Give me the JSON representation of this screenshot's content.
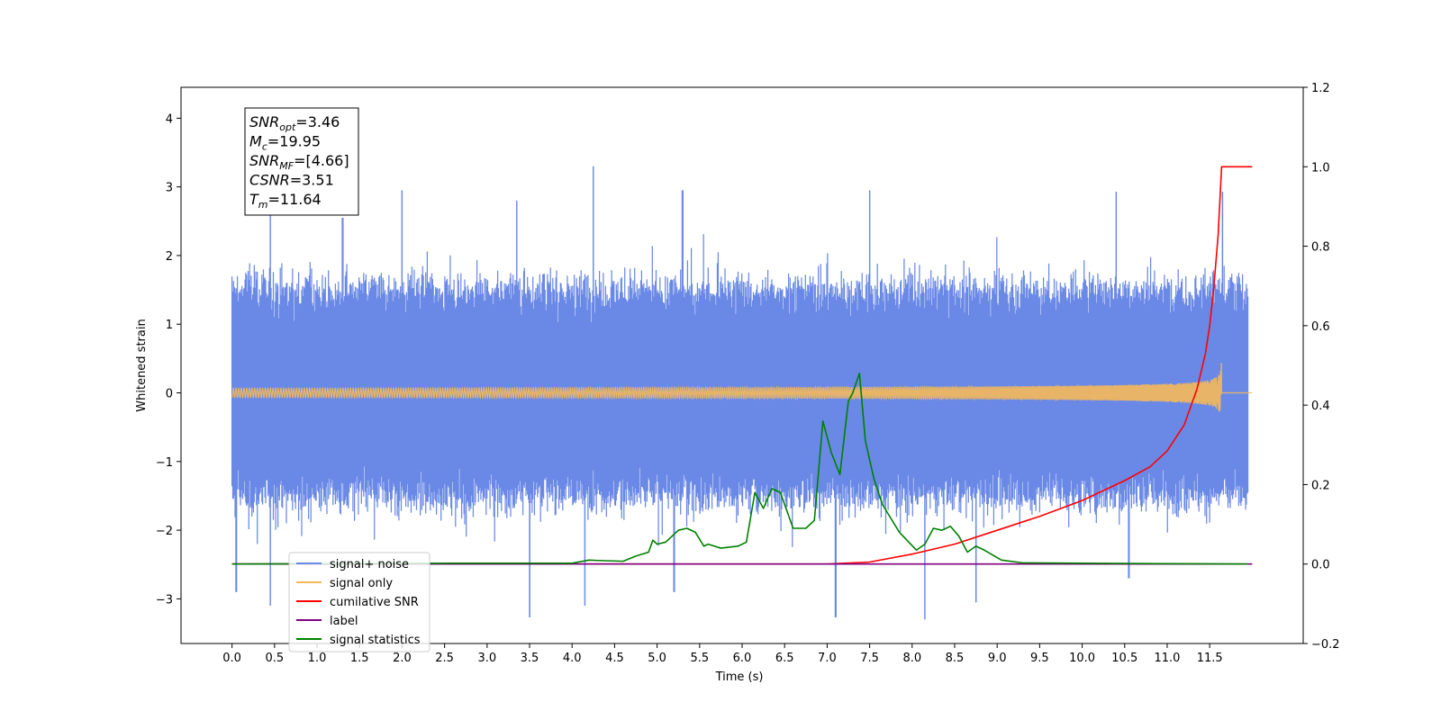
{
  "chart_data": {
    "type": "line",
    "xlabel": "Time (s)",
    "ylabel": "Whitened strain",
    "xlim": [
      -0.6,
      12.6
    ],
    "ylim": [
      -3.65,
      4.45
    ],
    "y2lim": [
      -0.2,
      1.2
    ],
    "x_ticks": [
      0.0,
      0.5,
      1.0,
      1.5,
      2.0,
      2.5,
      3.0,
      3.5,
      4.0,
      4.5,
      5.0,
      5.5,
      6.0,
      6.5,
      7.0,
      7.5,
      8.0,
      8.5,
      9.0,
      9.5,
      10.0,
      10.5,
      11.0,
      11.5
    ],
    "x_tick_labels": [
      "0.0",
      "0.5",
      "1.0",
      "1.5",
      "2.0",
      "2.5",
      "3.0",
      "3.5",
      "4.0",
      "4.5",
      "5.0",
      "5.5",
      "6.0",
      "6.5",
      "7.0",
      "7.5",
      "8.0",
      "8.5",
      "9.0",
      "9.5",
      "10.0",
      "10.5",
      "11.0",
      "11.5"
    ],
    "y_ticks": [
      4,
      3,
      2,
      1,
      0,
      -1,
      -2,
      -3
    ],
    "y_tick_labels": [
      "4",
      "3",
      "2",
      "1",
      "0",
      "−1",
      "−2",
      "−3"
    ],
    "y2_ticks": [
      1.2,
      1.0,
      0.8,
      0.6,
      0.4,
      0.2,
      0.0,
      -0.2
    ],
    "y2_tick_labels": [
      "1.2",
      "1.0",
      "0.8",
      "0.6",
      "0.4",
      "0.2",
      "0.0",
      "−0.2"
    ],
    "grid": false,
    "legend_position": "lower-left",
    "annotation": {
      "lines": [
        {
          "var": "SNR",
          "sub": "opt",
          "value": "=3.46"
        },
        {
          "var": "M",
          "sub": "c",
          "value": "=19.95"
        },
        {
          "var": "SNR",
          "sub": "MF",
          "value": "=[4.66]"
        },
        {
          "var": "CSNR",
          "sub": "",
          "value": "=3.51"
        },
        {
          "var": "T",
          "sub": "m",
          "value": "=11.64"
        }
      ]
    },
    "noise_envelope": {
      "x": [
        0.0,
        11.95
      ],
      "typical_max": 1.5,
      "typical_min": -1.5,
      "peaks": [
        [
          0.45,
          2.6
        ],
        [
          1.3,
          2.55
        ],
        [
          2.0,
          2.95
        ],
        [
          3.35,
          2.8
        ],
        [
          4.25,
          3.3
        ],
        [
          5.3,
          2.95
        ],
        [
          7.5,
          2.95
        ],
        [
          10.4,
          2.93
        ],
        [
          11.65,
          2.93
        ]
      ],
      "troughs": [
        [
          0.05,
          -2.9
        ],
        [
          0.45,
          -3.1
        ],
        [
          3.5,
          -3.27
        ],
        [
          4.15,
          -3.1
        ],
        [
          5.2,
          -2.9
        ],
        [
          7.1,
          -3.27
        ],
        [
          8.15,
          -3.3
        ],
        [
          8.75,
          -3.05
        ],
        [
          10.55,
          -2.7
        ]
      ]
    },
    "series": [
      {
        "name": "signal+ noise",
        "color": "#6a89e6",
        "axis": "left",
        "kind": "noise"
      },
      {
        "name": "signal only",
        "color": "#f5b95a",
        "axis": "left",
        "kind": "chirp",
        "t_merge": 11.64,
        "peak_amplitude": 0.5
      },
      {
        "name": "cumilative SNR",
        "color": "#ff0000",
        "axis": "right",
        "x": [
          0.0,
          7.0,
          7.5,
          8.0,
          8.5,
          9.0,
          9.5,
          10.0,
          10.5,
          10.8,
          11.0,
          11.2,
          11.35,
          11.45,
          11.5,
          11.55,
          11.6,
          11.64,
          12.0
        ],
        "y": [
          0.0,
          0.0,
          0.005,
          0.025,
          0.05,
          0.085,
          0.12,
          0.16,
          0.21,
          0.245,
          0.285,
          0.35,
          0.44,
          0.53,
          0.6,
          0.7,
          0.83,
          1.0,
          1.0
        ]
      },
      {
        "name": "label",
        "color": "#800080",
        "axis": "right",
        "x": [
          0.0,
          12.0
        ],
        "y": [
          0.0,
          0.0
        ]
      },
      {
        "name": "signal statistics",
        "color": "#008000",
        "axis": "right",
        "x": [
          0.0,
          2.6,
          3.0,
          4.0,
          4.2,
          4.3,
          4.6,
          4.75,
          4.9,
          4.95,
          5.0,
          5.1,
          5.25,
          5.35,
          5.45,
          5.55,
          5.6,
          5.75,
          5.95,
          6.05,
          6.15,
          6.25,
          6.35,
          6.45,
          6.6,
          6.75,
          6.85,
          6.95,
          7.05,
          7.15,
          7.25,
          7.3,
          7.38,
          7.45,
          7.55,
          7.65,
          7.85,
          8.05,
          8.15,
          8.25,
          8.35,
          8.45,
          8.55,
          8.65,
          8.75,
          8.85,
          9.05,
          9.3,
          10.0,
          11.95
        ],
        "y": [
          0.0,
          0.002,
          0.002,
          0.002,
          0.01,
          0.009,
          0.007,
          0.02,
          0.03,
          0.06,
          0.05,
          0.055,
          0.085,
          0.09,
          0.08,
          0.045,
          0.05,
          0.04,
          0.045,
          0.055,
          0.18,
          0.14,
          0.19,
          0.18,
          0.09,
          0.09,
          0.11,
          0.36,
          0.28,
          0.225,
          0.41,
          0.43,
          0.48,
          0.31,
          0.215,
          0.15,
          0.08,
          0.035,
          0.05,
          0.09,
          0.085,
          0.095,
          0.07,
          0.03,
          0.045,
          0.035,
          0.01,
          0.003,
          0.002,
          0.0
        ]
      }
    ],
    "legend": [
      "signal+ noise",
      "signal only",
      "cumilative SNR",
      "label",
      "signal statistics"
    ]
  }
}
